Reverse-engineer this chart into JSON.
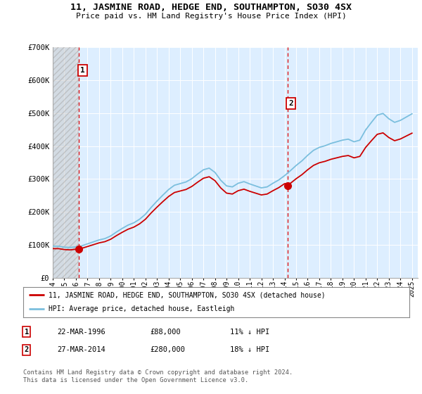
{
  "title": "11, JASMINE ROAD, HEDGE END, SOUTHAMPTON, SO30 4SX",
  "subtitle": "Price paid vs. HM Land Registry's House Price Index (HPI)",
  "sale1_price": 88000,
  "sale2_price": 280000,
  "legend_line1": "11, JASMINE ROAD, HEDGE END, SOUTHAMPTON, SO30 4SX (detached house)",
  "legend_line2": "HPI: Average price, detached house, Eastleigh",
  "table_row1": [
    "1",
    "22-MAR-1996",
    "£88,000",
    "11% ↓ HPI"
  ],
  "table_row2": [
    "2",
    "27-MAR-2014",
    "£280,000",
    "18% ↓ HPI"
  ],
  "footnote": "Contains HM Land Registry data © Crown copyright and database right 2024.\nThis data is licensed under the Open Government Licence v3.0.",
  "ylim": [
    0,
    700000
  ],
  "y_ticks": [
    0,
    100000,
    200000,
    300000,
    400000,
    500000,
    600000,
    700000
  ],
  "y_tick_labels": [
    "£0",
    "£100K",
    "£200K",
    "£300K",
    "£400K",
    "£500K",
    "£600K",
    "£700K"
  ],
  "hpi_color": "#7bbfde",
  "sale_color": "#cc0000",
  "plot_bg": "#ddeeff",
  "hatch_color": "#bbbbbb",
  "sale1_year": 1996.25,
  "sale2_year": 2014.25,
  "label1_yval": 630000,
  "label2_yval": 530000,
  "xlim_left": 1994.0,
  "xlim_right": 2025.5
}
